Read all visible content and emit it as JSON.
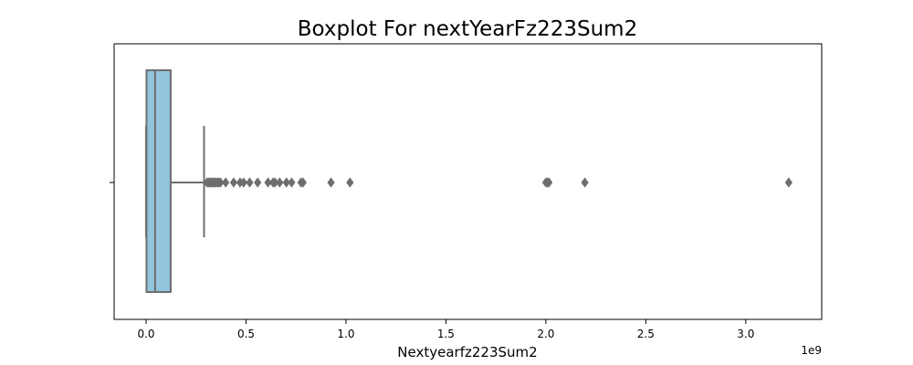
{
  "chart_data": {
    "type": "boxplot",
    "title": "Boxplot For nextYearFz223Sum2",
    "xlabel": "Nextyearfz223Sum2",
    "ylabel": "",
    "offset_label": "1e9",
    "xlim": [
      -160000000,
      3380000000
    ],
    "xticks": [
      0,
      500000000,
      1000000000,
      1500000000,
      2000000000,
      2500000000,
      3000000000
    ],
    "xtick_labels": [
      "0.0",
      "0.5",
      "1.0",
      "1.5",
      "2.0",
      "2.5",
      "3.0"
    ],
    "grid": false,
    "box": {
      "min": 0,
      "q1": 2000000,
      "median": 45000000,
      "q3": 123000000,
      "whisker_high": 290000000
    },
    "outliers": [
      305000000,
      312000000,
      318000000,
      324000000,
      330000000,
      336000000,
      342000000,
      350000000,
      358000000,
      365000000,
      372000000,
      398000000,
      438000000,
      470000000,
      488000000,
      518000000,
      558000000,
      610000000,
      635000000,
      645000000,
      668000000,
      702000000,
      728000000,
      775000000,
      785000000,
      925000000,
      1020000000,
      2000000000,
      2008000000,
      2015000000,
      2195000000,
      3215000000
    ],
    "colors": {
      "box_fill": "#92c5de",
      "box_edge": "#6e6e6e",
      "outlier": "#6e6e6e"
    }
  }
}
